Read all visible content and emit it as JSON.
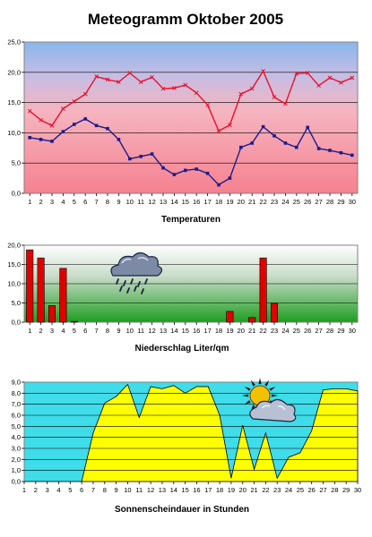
{
  "title": "Meteogramm Oktober 2005",
  "chart_data": [
    {
      "type": "line",
      "xlabel": "Temperaturen",
      "ylim": [
        0,
        25
      ],
      "ytick_labels": [
        "0,0",
        "5,0",
        "10,0",
        "15,0",
        "20,0",
        "25,0"
      ],
      "grid": true,
      "x": [
        1,
        2,
        3,
        4,
        5,
        6,
        7,
        8,
        9,
        10,
        11,
        12,
        13,
        14,
        15,
        16,
        17,
        18,
        19,
        20,
        21,
        22,
        23,
        24,
        25,
        26,
        27,
        28,
        29,
        30
      ],
      "series": [
        {
          "color": "#e8102a",
          "values": [
            13.6,
            12.1,
            11.2,
            14.0,
            15.2,
            16.4,
            19.3,
            18.8,
            18.4,
            19.9,
            18.4,
            19.2,
            17.3,
            17.4,
            17.9,
            16.6,
            14.6,
            10.3,
            11.3,
            16.4,
            17.3,
            20.2,
            15.9,
            14.8,
            19.8,
            19.9,
            17.8,
            19.1,
            18.3,
            19.1
          ]
        },
        {
          "color": "#1c1c8c",
          "values": [
            9.2,
            8.9,
            8.6,
            10.2,
            11.4,
            12.3,
            11.2,
            10.7,
            8.9,
            5.7,
            6.1,
            6.5,
            4.2,
            3.1,
            3.8,
            4.0,
            3.3,
            1.4,
            2.5,
            7.6,
            8.3,
            11.0,
            9.5,
            8.3,
            7.6,
            10.9,
            7.4,
            7.1,
            6.7,
            6.3
          ]
        }
      ]
    },
    {
      "type": "bar",
      "xlabel": "Niederschlag Liter/qm",
      "ylim": [
        0,
        20
      ],
      "ytick_labels": [
        "0,0",
        "5,0",
        "10,0",
        "15,0",
        "20,0"
      ],
      "grid": true,
      "color": "#e00000",
      "icon": "rain-cloud-icon",
      "categories": [
        "1",
        "2",
        "3",
        "4",
        "5",
        "6",
        "7",
        "8",
        "9",
        "10",
        "11",
        "12",
        "13",
        "14",
        "15",
        "16",
        "17",
        "18",
        "19",
        "20",
        "21",
        "22",
        "23",
        "24",
        "25",
        "26",
        "27",
        "28",
        "29",
        "30"
      ],
      "values": [
        18.8,
        16.7,
        4.3,
        14.0,
        0.2,
        0,
        0,
        0,
        0,
        0,
        0,
        0,
        0,
        0,
        0,
        0,
        0,
        0,
        2.8,
        0,
        1.2,
        16.7,
        4.9,
        0,
        0,
        0,
        0,
        0,
        0,
        0
      ]
    },
    {
      "type": "area",
      "xlabel": "Sonnenscheindauer in Stunden",
      "ylim": [
        0,
        9
      ],
      "ytick_labels": [
        "0,0",
        "1,0",
        "2,0",
        "3,0",
        "4,0",
        "5,0",
        "6,0",
        "7,0",
        "8,0",
        "9,0"
      ],
      "grid": true,
      "color": "#ffff00",
      "icon": "sun-cloud-icon",
      "x": [
        1,
        2,
        3,
        4,
        5,
        6,
        7,
        8,
        9,
        10,
        11,
        12,
        13,
        14,
        15,
        16,
        17,
        18,
        19,
        20,
        21,
        22,
        23,
        24,
        25,
        26,
        27,
        28,
        29,
        30
      ],
      "values": [
        0,
        0,
        0,
        0,
        0,
        0,
        4.4,
        7.1,
        7.7,
        8.8,
        5.8,
        8.6,
        8.4,
        8.7,
        8.0,
        8.6,
        8.6,
        6.0,
        0.3,
        5.1,
        1.1,
        4.4,
        0.3,
        2.2,
        2.6,
        4.6,
        8.3,
        8.4,
        8.4,
        8.2
      ]
    }
  ]
}
